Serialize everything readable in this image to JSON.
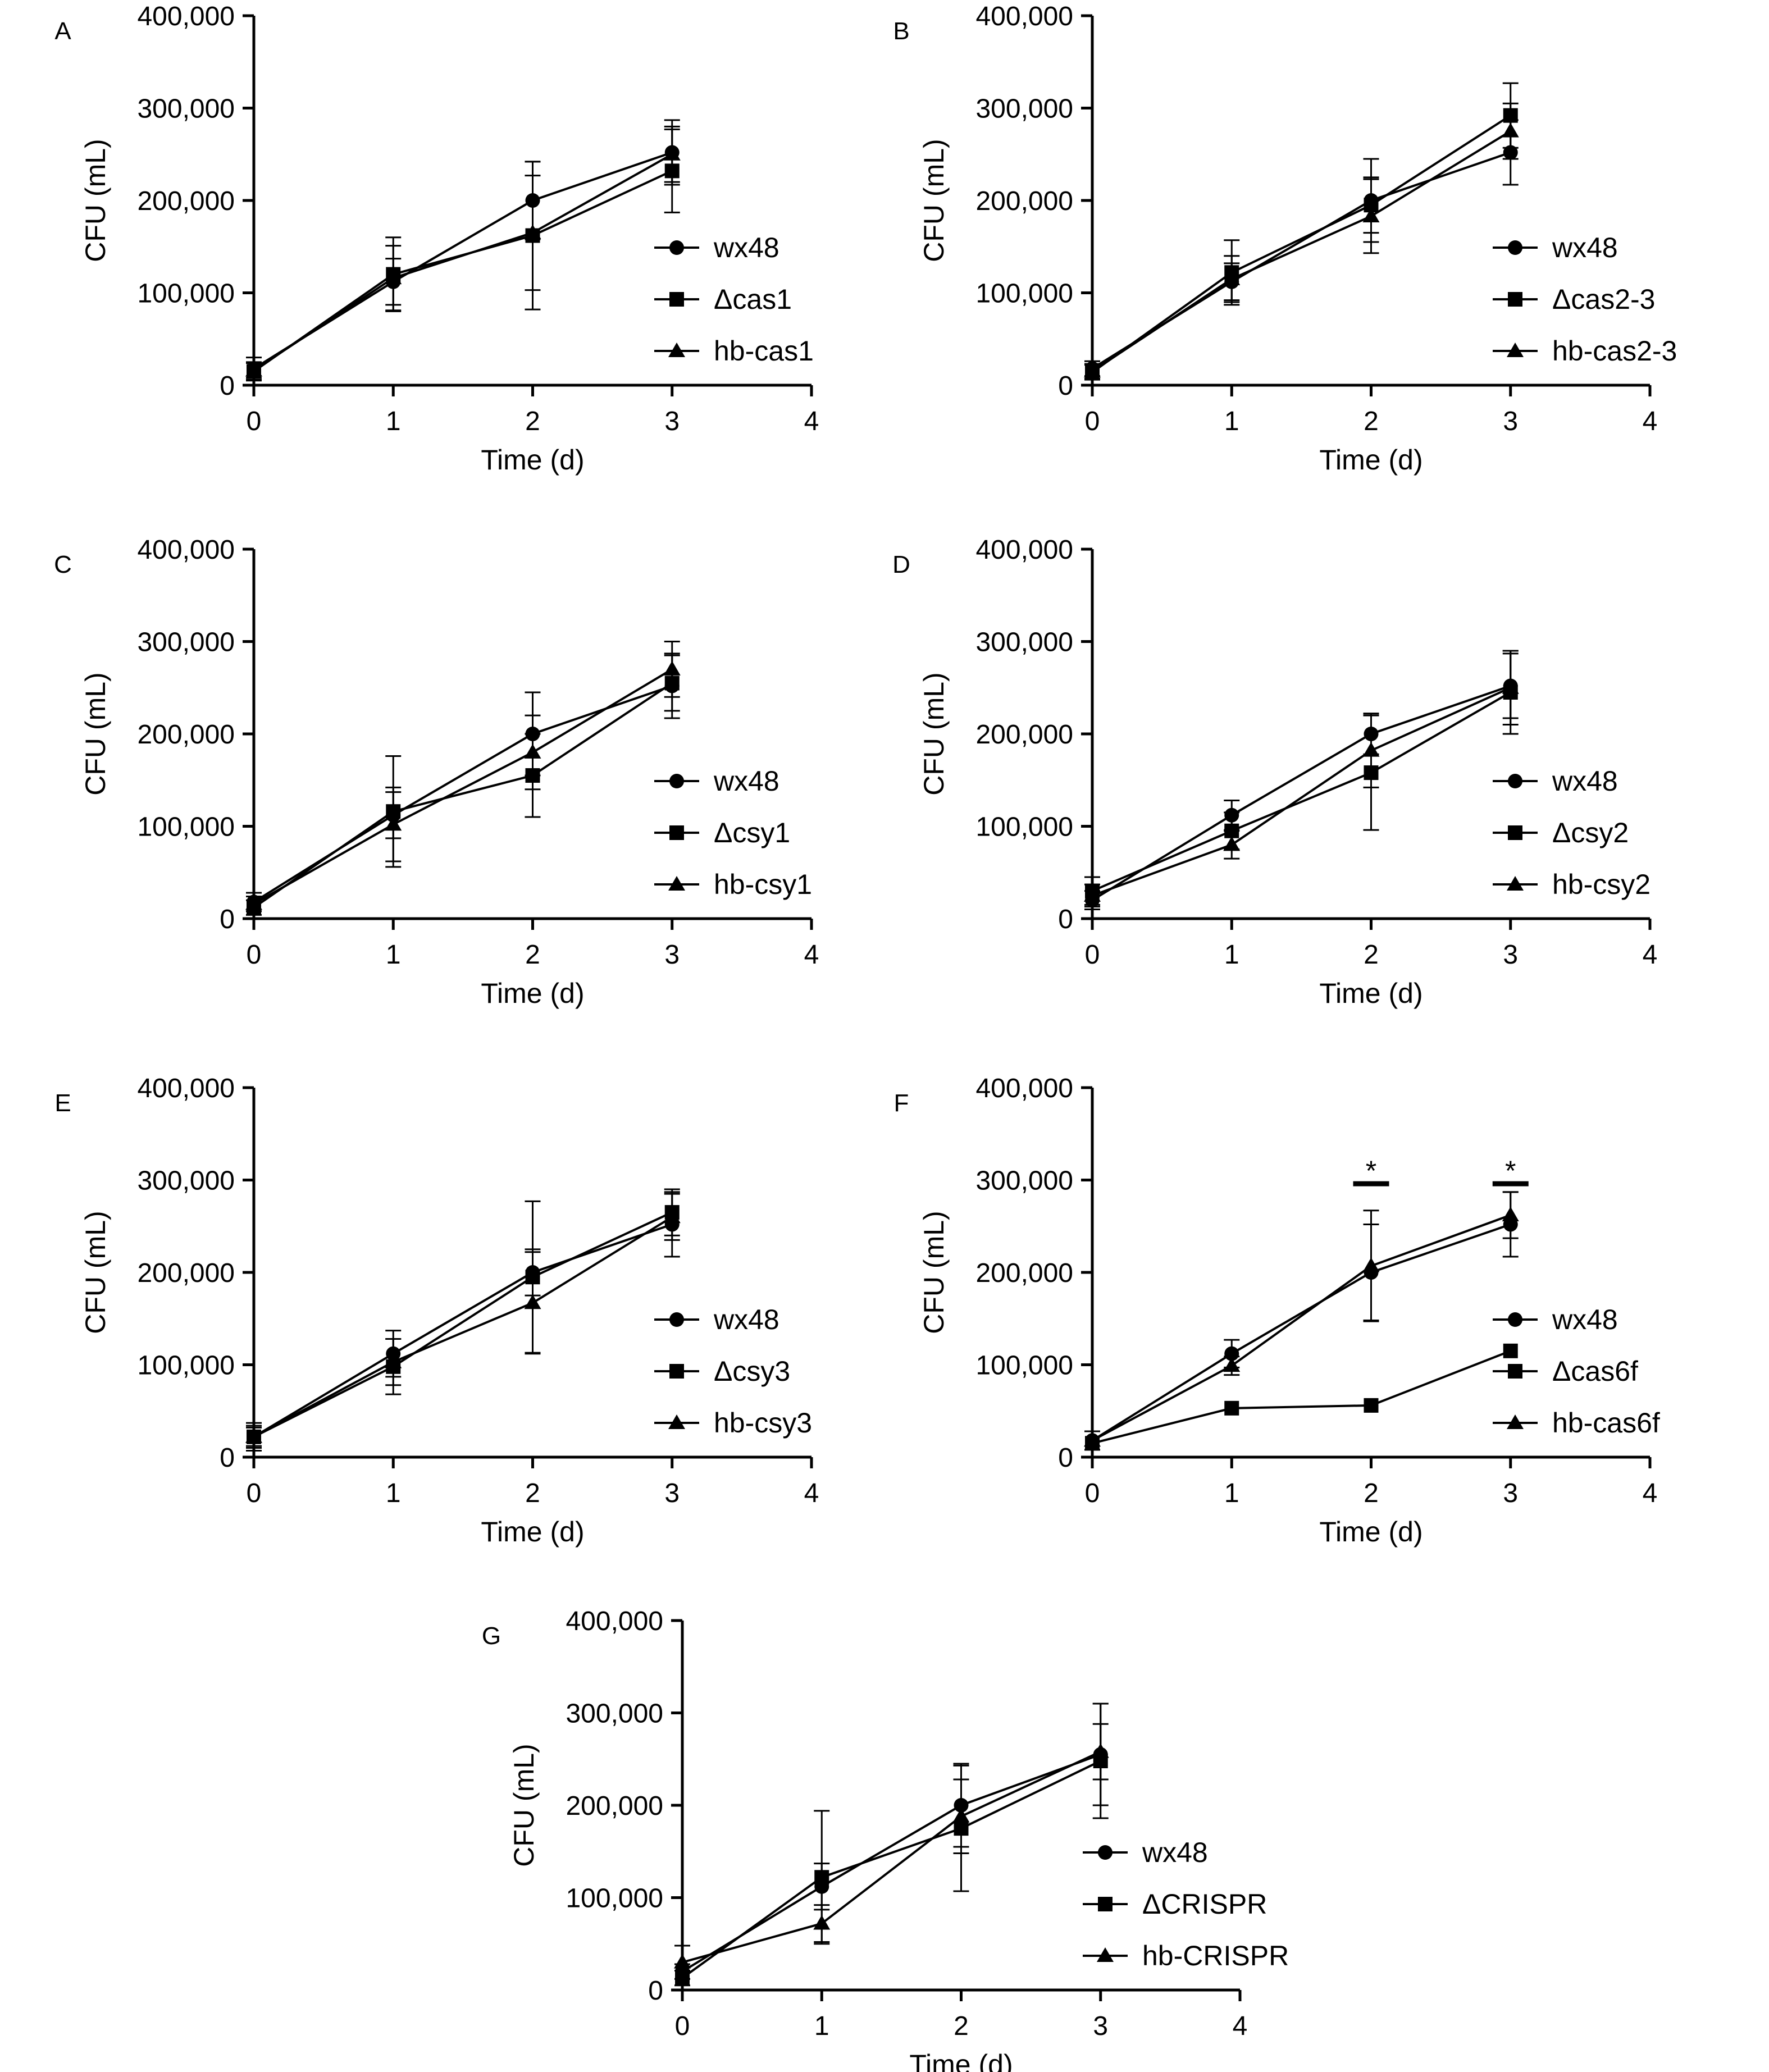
{
  "chart_data": [
    {
      "type": "line",
      "panel": "A",
      "xlabel": "Time (d)",
      "ylabel": "CFU (mL)",
      "xlim": [
        0,
        4
      ],
      "ylim": [
        0,
        400000
      ],
      "x_ticks": [
        "0",
        "1",
        "2",
        "3",
        "4"
      ],
      "y_ticks": [
        "0",
        "100,000",
        "200,000",
        "300,000",
        "400,000"
      ],
      "x": [
        0,
        1,
        2,
        3
      ],
      "series": [
        {
          "name": "wx48",
          "marker": "circle",
          "values": [
            18000,
            112000,
            200000,
            252000
          ],
          "errors": [
            12000,
            25000,
            42000,
            35000
          ]
        },
        {
          "name": "Δcas1",
          "marker": "square",
          "values": [
            15000,
            120000,
            162000,
            232000
          ],
          "errors": [
            10000,
            40000,
            80000,
            45000
          ]
        },
        {
          "name": "hb-cas1",
          "marker": "triangle",
          "values": [
            16000,
            116000,
            165000,
            250000
          ],
          "errors": [
            8000,
            35000,
            62000,
            30000
          ]
        }
      ],
      "annotations": [],
      "legend": "right",
      "grid": false
    },
    {
      "type": "line",
      "panel": "B",
      "xlabel": "Time (d)",
      "ylabel": "CFU (mL)",
      "xlim": [
        0,
        4
      ],
      "ylim": [
        0,
        400000
      ],
      "x_ticks": [
        "0",
        "1",
        "2",
        "3",
        "4"
      ],
      "y_ticks": [
        "0",
        "100,000",
        "200,000",
        "300,000",
        "400,000"
      ],
      "x": [
        0,
        1,
        2,
        3
      ],
      "series": [
        {
          "name": "wx48",
          "marker": "circle",
          "values": [
            18000,
            112000,
            200000,
            252000
          ],
          "errors": [
            8000,
            20000,
            45000,
            35000
          ]
        },
        {
          "name": "Δcas2-3",
          "marker": "square",
          "values": [
            14000,
            122000,
            195000,
            292000
          ],
          "errors": [
            8000,
            35000,
            30000,
            35000
          ]
        },
        {
          "name": "hb-cas2-3",
          "marker": "triangle",
          "values": [
            15000,
            115000,
            183000,
            275000
          ],
          "errors": [
            8000,
            25000,
            40000,
            30000
          ]
        }
      ],
      "annotations": [],
      "legend": "right",
      "grid": false
    },
    {
      "type": "line",
      "panel": "C",
      "xlabel": "Time (d)",
      "ylabel": "CFU (mL)",
      "xlim": [
        0,
        4
      ],
      "ylim": [
        0,
        400000
      ],
      "x_ticks": [
        "0",
        "1",
        "2",
        "3",
        "4"
      ],
      "y_ticks": [
        "0",
        "100,000",
        "200,000",
        "300,000",
        "400,000"
      ],
      "x": [
        0,
        1,
        2,
        3
      ],
      "series": [
        {
          "name": "wx48",
          "marker": "circle",
          "values": [
            18000,
            112000,
            200000,
            252000
          ],
          "errors": [
            10000,
            25000,
            45000,
            35000
          ]
        },
        {
          "name": "Δcsy1",
          "marker": "square",
          "values": [
            12000,
            116000,
            155000,
            255000
          ],
          "errors": [
            8000,
            60000,
            45000,
            30000
          ]
        },
        {
          "name": "hb-csy1",
          "marker": "triangle",
          "values": [
            16000,
            102000,
            180000,
            270000
          ],
          "errors": [
            8000,
            40000,
            40000,
            30000
          ]
        }
      ],
      "annotations": [],
      "legend": "right",
      "grid": false
    },
    {
      "type": "line",
      "panel": "D",
      "xlabel": "Time (d)",
      "ylabel": "CFU (mL)",
      "xlim": [
        0,
        4
      ],
      "ylim": [
        0,
        400000
      ],
      "x_ticks": [
        "0",
        "1",
        "2",
        "3",
        "4"
      ],
      "y_ticks": [
        "0",
        "100,000",
        "200,000",
        "300,000",
        "400,000"
      ],
      "x": [
        0,
        1,
        2,
        3
      ],
      "series": [
        {
          "name": "wx48",
          "marker": "circle",
          "values": [
            20000,
            112000,
            200000,
            252000
          ],
          "errors": [
            10000,
            16000,
            22000,
            35000
          ]
        },
        {
          "name": "Δcsy2",
          "marker": "square",
          "values": [
            30000,
            95000,
            158000,
            245000
          ],
          "errors": [
            15000,
            20000,
            62000,
            45000
          ]
        },
        {
          "name": "hb-csy2",
          "marker": "triangle",
          "values": [
            25000,
            80000,
            182000,
            250000
          ],
          "errors": [
            12000,
            15000,
            40000,
            40000
          ]
        }
      ],
      "annotations": [],
      "legend": "right",
      "grid": false
    },
    {
      "type": "line",
      "panel": "E",
      "xlabel": "Time (d)",
      "ylabel": "CFU (mL)",
      "xlim": [
        0,
        4
      ],
      "ylim": [
        0,
        400000
      ],
      "x_ticks": [
        "0",
        "1",
        "2",
        "3",
        "4"
      ],
      "y_ticks": [
        "0",
        "100,000",
        "200,000",
        "300,000",
        "400,000"
      ],
      "x": [
        0,
        1,
        2,
        3
      ],
      "series": [
        {
          "name": "wx48",
          "marker": "circle",
          "values": [
            22000,
            112000,
            200000,
            252000
          ],
          "errors": [
            15000,
            25000,
            25000,
            35000
          ]
        },
        {
          "name": "Δcsy3",
          "marker": "square",
          "values": [
            22000,
            98000,
            195000,
            265000
          ],
          "errors": [
            12000,
            30000,
            82000,
            25000
          ]
        },
        {
          "name": "hb-csy3",
          "marker": "triangle",
          "values": [
            22000,
            103000,
            167000,
            260000
          ],
          "errors": [
            10000,
            25000,
            55000,
            25000
          ]
        }
      ],
      "annotations": [],
      "legend": "right",
      "grid": false
    },
    {
      "type": "line",
      "panel": "F",
      "xlabel": "Time (d)",
      "ylabel": "CFU (mL)",
      "xlim": [
        0,
        4
      ],
      "ylim": [
        0,
        400000
      ],
      "x_ticks": [
        "0",
        "1",
        "2",
        "3",
        "4"
      ],
      "y_ticks": [
        "0",
        "100,000",
        "200,000",
        "300,000",
        "400,000"
      ],
      "x": [
        0,
        1,
        2,
        3
      ],
      "series": [
        {
          "name": "wx48",
          "marker": "circle",
          "values": [
            18000,
            112000,
            200000,
            252000
          ],
          "errors": [
            10000,
            15000,
            52000,
            35000
          ]
        },
        {
          "name": "Δcas6f",
          "marker": "square",
          "values": [
            15000,
            53000,
            56000,
            115000
          ],
          "errors": [
            0,
            0,
            0,
            0
          ]
        },
        {
          "name": "hb-cas6f",
          "marker": "triangle",
          "values": [
            18000,
            99000,
            207000,
            262000
          ],
          "errors": [
            10000,
            10000,
            60000,
            25000
          ]
        }
      ],
      "annotations": [
        {
          "text": "*",
          "x": 2
        },
        {
          "text": "*",
          "x": 3
        }
      ],
      "legend": "right",
      "grid": false
    },
    {
      "type": "line",
      "panel": "G",
      "xlabel": "Time (d)",
      "ylabel": "CFU (mL)",
      "xlim": [
        0,
        4
      ],
      "ylim": [
        0,
        400000
      ],
      "x_ticks": [
        "0",
        "1",
        "2",
        "3",
        "4"
      ],
      "y_ticks": [
        "0",
        "100,000",
        "200,000",
        "300,000",
        "400,000"
      ],
      "x": [
        0,
        1,
        2,
        3
      ],
      "series": [
        {
          "name": "wx48",
          "marker": "circle",
          "values": [
            20000,
            112000,
            200000,
            255000
          ],
          "errors": [
            8000,
            25000,
            45000,
            55000
          ]
        },
        {
          "name": "ΔCRISPR",
          "marker": "square",
          "values": [
            13000,
            122000,
            175000,
            248000
          ],
          "errors": [
            8000,
            72000,
            68000,
            62000
          ]
        },
        {
          "name": "hb-CRISPR",
          "marker": "triangle",
          "values": [
            30000,
            72000,
            188000,
            258000
          ],
          "errors": [
            18000,
            20000,
            40000,
            30000
          ]
        }
      ],
      "annotations": [],
      "legend": "right",
      "grid": false
    }
  ]
}
